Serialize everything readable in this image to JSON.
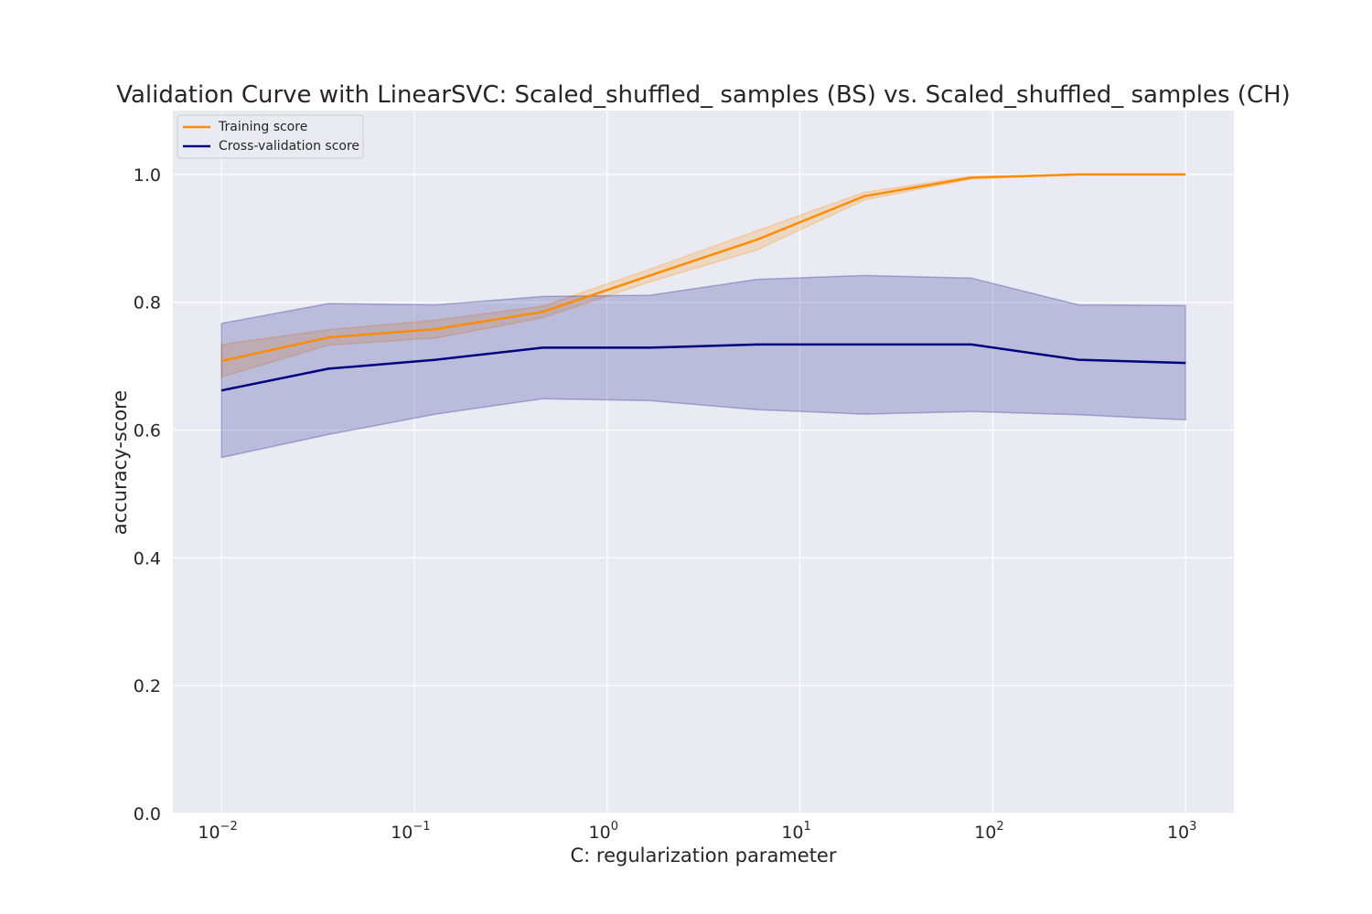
{
  "chart_data": {
    "type": "line",
    "title": "Validation Curve with LinearSVC: Scaled_shuffled_ samples (BS) vs. Scaled_shuffled_ samples (CH)",
    "xlabel": "C: regularization parameter",
    "ylabel": "accuracy-score",
    "xscale": "log",
    "xlim": [
      0.0056,
      1780
    ],
    "ylim": [
      0.0,
      1.1
    ],
    "grid": true,
    "legend_position": "top-left",
    "x_ticks": [
      {
        "value": 0.01,
        "base": "10",
        "exp": "−2"
      },
      {
        "value": 0.1,
        "base": "10",
        "exp": "−1"
      },
      {
        "value": 1,
        "base": "10",
        "exp": "0"
      },
      {
        "value": 10,
        "base": "10",
        "exp": "1"
      },
      {
        "value": 100,
        "base": "10",
        "exp": "2"
      },
      {
        "value": 1000,
        "base": "10",
        "exp": "3"
      }
    ],
    "y_ticks": [
      "0.0",
      "0.2",
      "0.4",
      "0.6",
      "0.8",
      "1.0"
    ],
    "x": [
      0.01,
      0.0359,
      0.129,
      0.464,
      1.668,
      5.995,
      21.54,
      77.43,
      278.3,
      1000
    ],
    "series": [
      {
        "name": "Training score",
        "color": "#ff8c00",
        "values": [
          0.708,
          0.745,
          0.758,
          0.785,
          0.842,
          0.898,
          0.966,
          0.995,
          1.0,
          1.0
        ],
        "lower": [
          0.683,
          0.733,
          0.744,
          0.776,
          0.832,
          0.882,
          0.96,
          0.993,
          1.0,
          1.0
        ],
        "upper": [
          0.734,
          0.757,
          0.772,
          0.794,
          0.852,
          0.912,
          0.972,
          0.997,
          1.0,
          1.0
        ]
      },
      {
        "name": "Cross-validation score",
        "color": "#000080",
        "values": [
          0.662,
          0.696,
          0.71,
          0.729,
          0.729,
          0.734,
          0.734,
          0.734,
          0.71,
          0.705
        ],
        "lower": [
          0.557,
          0.593,
          0.625,
          0.649,
          0.646,
          0.632,
          0.625,
          0.629,
          0.624,
          0.616
        ],
        "upper": [
          0.767,
          0.798,
          0.796,
          0.809,
          0.811,
          0.836,
          0.842,
          0.838,
          0.796,
          0.795
        ]
      }
    ]
  }
}
